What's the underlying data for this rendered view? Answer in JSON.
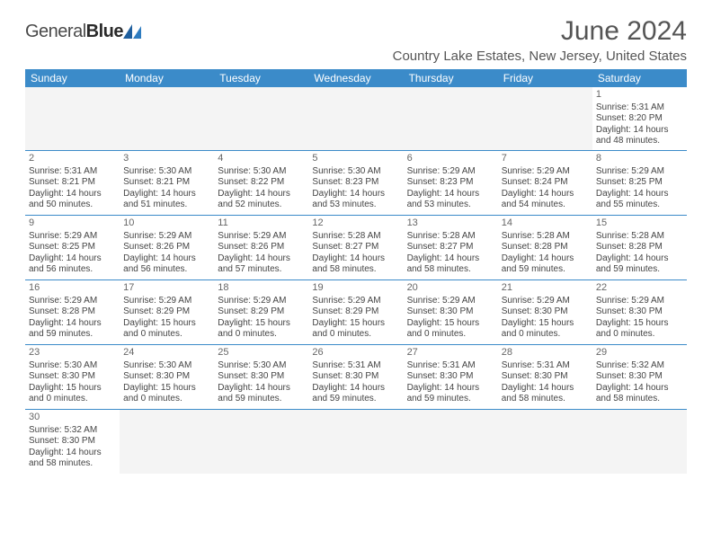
{
  "logo": {
    "part1": "General",
    "part2": "Blue"
  },
  "title": "June 2024",
  "location": "Country Lake Estates, New Jersey, United States",
  "colors": {
    "header_bg": "#3b8bc9",
    "header_text": "#ffffff",
    "border": "#3b8bc9",
    "text": "#444444",
    "title_text": "#555555"
  },
  "day_names": [
    "Sunday",
    "Monday",
    "Tuesday",
    "Wednesday",
    "Thursday",
    "Friday",
    "Saturday"
  ],
  "weeks": [
    [
      null,
      null,
      null,
      null,
      null,
      null,
      {
        "n": "1",
        "sr": "5:31 AM",
        "ss": "8:20 PM",
        "dl": "14 hours and 48 minutes."
      }
    ],
    [
      {
        "n": "2",
        "sr": "5:31 AM",
        "ss": "8:21 PM",
        "dl": "14 hours and 50 minutes."
      },
      {
        "n": "3",
        "sr": "5:30 AM",
        "ss": "8:21 PM",
        "dl": "14 hours and 51 minutes."
      },
      {
        "n": "4",
        "sr": "5:30 AM",
        "ss": "8:22 PM",
        "dl": "14 hours and 52 minutes."
      },
      {
        "n": "5",
        "sr": "5:30 AM",
        "ss": "8:23 PM",
        "dl": "14 hours and 53 minutes."
      },
      {
        "n": "6",
        "sr": "5:29 AM",
        "ss": "8:23 PM",
        "dl": "14 hours and 53 minutes."
      },
      {
        "n": "7",
        "sr": "5:29 AM",
        "ss": "8:24 PM",
        "dl": "14 hours and 54 minutes."
      },
      {
        "n": "8",
        "sr": "5:29 AM",
        "ss": "8:25 PM",
        "dl": "14 hours and 55 minutes."
      }
    ],
    [
      {
        "n": "9",
        "sr": "5:29 AM",
        "ss": "8:25 PM",
        "dl": "14 hours and 56 minutes."
      },
      {
        "n": "10",
        "sr": "5:29 AM",
        "ss": "8:26 PM",
        "dl": "14 hours and 56 minutes."
      },
      {
        "n": "11",
        "sr": "5:29 AM",
        "ss": "8:26 PM",
        "dl": "14 hours and 57 minutes."
      },
      {
        "n": "12",
        "sr": "5:28 AM",
        "ss": "8:27 PM",
        "dl": "14 hours and 58 minutes."
      },
      {
        "n": "13",
        "sr": "5:28 AM",
        "ss": "8:27 PM",
        "dl": "14 hours and 58 minutes."
      },
      {
        "n": "14",
        "sr": "5:28 AM",
        "ss": "8:28 PM",
        "dl": "14 hours and 59 minutes."
      },
      {
        "n": "15",
        "sr": "5:28 AM",
        "ss": "8:28 PM",
        "dl": "14 hours and 59 minutes."
      }
    ],
    [
      {
        "n": "16",
        "sr": "5:29 AM",
        "ss": "8:28 PM",
        "dl": "14 hours and 59 minutes."
      },
      {
        "n": "17",
        "sr": "5:29 AM",
        "ss": "8:29 PM",
        "dl": "15 hours and 0 minutes."
      },
      {
        "n": "18",
        "sr": "5:29 AM",
        "ss": "8:29 PM",
        "dl": "15 hours and 0 minutes."
      },
      {
        "n": "19",
        "sr": "5:29 AM",
        "ss": "8:29 PM",
        "dl": "15 hours and 0 minutes."
      },
      {
        "n": "20",
        "sr": "5:29 AM",
        "ss": "8:30 PM",
        "dl": "15 hours and 0 minutes."
      },
      {
        "n": "21",
        "sr": "5:29 AM",
        "ss": "8:30 PM",
        "dl": "15 hours and 0 minutes."
      },
      {
        "n": "22",
        "sr": "5:29 AM",
        "ss": "8:30 PM",
        "dl": "15 hours and 0 minutes."
      }
    ],
    [
      {
        "n": "23",
        "sr": "5:30 AM",
        "ss": "8:30 PM",
        "dl": "15 hours and 0 minutes."
      },
      {
        "n": "24",
        "sr": "5:30 AM",
        "ss": "8:30 PM",
        "dl": "15 hours and 0 minutes."
      },
      {
        "n": "25",
        "sr": "5:30 AM",
        "ss": "8:30 PM",
        "dl": "14 hours and 59 minutes."
      },
      {
        "n": "26",
        "sr": "5:31 AM",
        "ss": "8:30 PM",
        "dl": "14 hours and 59 minutes."
      },
      {
        "n": "27",
        "sr": "5:31 AM",
        "ss": "8:30 PM",
        "dl": "14 hours and 59 minutes."
      },
      {
        "n": "28",
        "sr": "5:31 AM",
        "ss": "8:30 PM",
        "dl": "14 hours and 58 minutes."
      },
      {
        "n": "29",
        "sr": "5:32 AM",
        "ss": "8:30 PM",
        "dl": "14 hours and 58 minutes."
      }
    ],
    [
      {
        "n": "30",
        "sr": "5:32 AM",
        "ss": "8:30 PM",
        "dl": "14 hours and 58 minutes."
      },
      null,
      null,
      null,
      null,
      null,
      null
    ]
  ],
  "labels": {
    "sunrise": "Sunrise:",
    "sunset": "Sunset:",
    "daylight": "Daylight:"
  }
}
